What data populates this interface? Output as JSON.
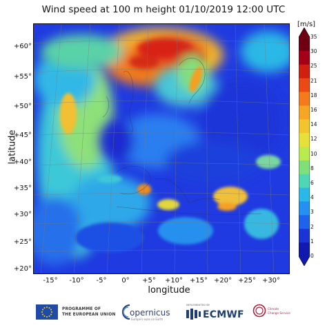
{
  "title": "Wind speed at 100 m height 01/10/2019 12:00 UTC",
  "axes": {
    "xlabel": "longitude",
    "ylabel": "latitude",
    "lat_ticks": [
      "+60°",
      "+55°",
      "+50°",
      "+45°",
      "+40°",
      "+35°",
      "+30°",
      "+25°",
      "+20°"
    ],
    "lon_ticks": [
      "-15°",
      "-10°",
      "-5°",
      "0°",
      "+5°",
      "+10°",
      "+15°",
      "+20°",
      "+25°",
      "+30°"
    ]
  },
  "colorbar": {
    "unit": "[m/s]",
    "ticks": [
      "35",
      "30",
      "25",
      "21",
      "18",
      "16",
      "14",
      "12",
      "10",
      "8",
      "6",
      "4",
      "3",
      "2",
      "1",
      "0"
    ],
    "colors": [
      "#6e0012",
      "#a40018",
      "#d01e10",
      "#ec4a14",
      "#f47a1c",
      "#f6a524",
      "#f2c52e",
      "#e6e03a",
      "#b9ea4e",
      "#7fe07a",
      "#4fd6b6",
      "#2bb8e6",
      "#2490f2",
      "#1f62ec",
      "#1a34d8",
      "#101ab0"
    ],
    "min": 0,
    "max": 35
  },
  "map_data": {
    "variable": "Wind speed at 100 m height",
    "unit": "m/s",
    "valid_time": "01/10/2019 12:00 UTC",
    "lat_range": [
      20,
      62
    ],
    "lon_range": [
      -15,
      30
    ]
  },
  "footer": {
    "eu_line1": "PROGRAMME OF",
    "eu_line2": "THE EUROPEAN UNION",
    "copernicus": "opernicus",
    "copernicus_sub": "Europe's eyes on Earth",
    "ecmwf_implemented": "IMPLEMENTED BY",
    "ecmwf": "ECMWF",
    "c3s_line1": "Climate",
    "c3s_line2": "Change Service"
  }
}
